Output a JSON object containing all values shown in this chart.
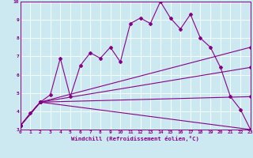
{
  "xlabel": "Windchill (Refroidissement éolien,°C)",
  "background_color": "#cce8f0",
  "line_color": "#880088",
  "grid_color": "#ffffff",
  "xlim": [
    0,
    23
  ],
  "ylim": [
    3,
    10
  ],
  "yticks": [
    3,
    4,
    5,
    6,
    7,
    8,
    9,
    10
  ],
  "xticks": [
    0,
    1,
    2,
    3,
    4,
    5,
    6,
    7,
    8,
    9,
    10,
    11,
    12,
    13,
    14,
    15,
    16,
    17,
    18,
    19,
    20,
    21,
    22,
    23
  ],
  "lines": [
    {
      "x": [
        0,
        1,
        2,
        3,
        4,
        5,
        6,
        7,
        8,
        9,
        10,
        11,
        12,
        13,
        14,
        15,
        16,
        17,
        18,
        19,
        20,
        21,
        22,
        23
      ],
      "y": [
        3.2,
        3.9,
        4.5,
        4.9,
        6.9,
        4.8,
        6.5,
        7.2,
        6.9,
        7.5,
        6.7,
        8.8,
        9.1,
        8.8,
        10.0,
        9.1,
        8.5,
        9.3,
        8.0,
        7.5,
        6.4,
        4.8,
        4.1,
        3.0
      ]
    },
    {
      "x": [
        0,
        2,
        23
      ],
      "y": [
        3.2,
        4.5,
        7.5
      ]
    },
    {
      "x": [
        0,
        2,
        23
      ],
      "y": [
        3.2,
        4.5,
        6.4
      ]
    },
    {
      "x": [
        0,
        2,
        23
      ],
      "y": [
        3.2,
        4.5,
        4.8
      ]
    },
    {
      "x": [
        0,
        2,
        23
      ],
      "y": [
        3.2,
        4.5,
        3.0
      ]
    }
  ]
}
